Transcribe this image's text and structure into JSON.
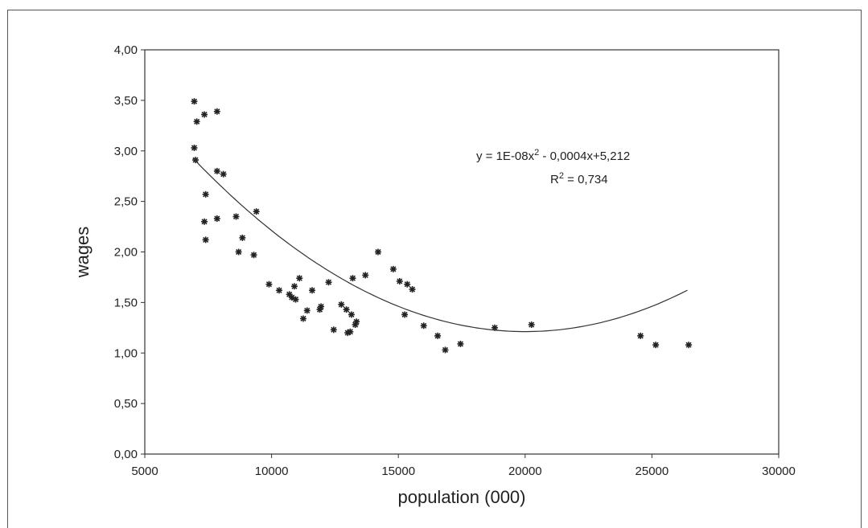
{
  "chart_data": {
    "type": "scatter",
    "xlabel": "population (000)",
    "ylabel": "wages",
    "xlim": [
      5000,
      30000
    ],
    "ylim": [
      0,
      4
    ],
    "x_ticks": [
      "5000",
      "10000",
      "15000",
      "20000",
      "25000",
      "30000"
    ],
    "y_ticks": [
      "0,00",
      "0,50",
      "1,00",
      "1,50",
      "2,00",
      "2,50",
      "3,00",
      "3,50",
      "4,00"
    ],
    "grid": false,
    "trendline": {
      "type": "polynomial",
      "degree": 2,
      "coefficients": [
        1e-08,
        -0.0004,
        5.212
      ],
      "x_range": [
        6900,
        26400
      ],
      "equation": "y = 1E-08x",
      "equation_rest": " - 0,0004x+5,212",
      "r2_label": "R",
      "r2_value": " = 0,734",
      "superscript": "2"
    },
    "marker_color": "#222222",
    "line_color": "#333333",
    "points": [
      [
        6950,
        3.49
      ],
      [
        7050,
        3.29
      ],
      [
        7350,
        3.36
      ],
      [
        7850,
        3.39
      ],
      [
        6950,
        3.03
      ],
      [
        7000,
        2.91
      ],
      [
        7400,
        2.57
      ],
      [
        7850,
        2.8
      ],
      [
        8100,
        2.77
      ],
      [
        7350,
        2.3
      ],
      [
        7400,
        2.12
      ],
      [
        7850,
        2.33
      ],
      [
        8600,
        2.35
      ],
      [
        8700,
        2.0
      ],
      [
        8850,
        2.14
      ],
      [
        9300,
        1.97
      ],
      [
        9400,
        2.4
      ],
      [
        9900,
        1.68
      ],
      [
        10300,
        1.62
      ],
      [
        10700,
        1.58
      ],
      [
        10800,
        1.55
      ],
      [
        10900,
        1.66
      ],
      [
        10950,
        1.53
      ],
      [
        11100,
        1.74
      ],
      [
        11250,
        1.34
      ],
      [
        11400,
        1.42
      ],
      [
        11600,
        1.62
      ],
      [
        11900,
        1.43
      ],
      [
        11950,
        1.46
      ],
      [
        12250,
        1.7
      ],
      [
        12450,
        1.23
      ],
      [
        12750,
        1.48
      ],
      [
        12950,
        1.43
      ],
      [
        13000,
        1.2
      ],
      [
        13100,
        1.21
      ],
      [
        13150,
        1.38
      ],
      [
        13200,
        1.74
      ],
      [
        13300,
        1.28
      ],
      [
        13350,
        1.31
      ],
      [
        13700,
        1.77
      ],
      [
        14200,
        2.0
      ],
      [
        14800,
        1.83
      ],
      [
        15050,
        1.71
      ],
      [
        15250,
        1.38
      ],
      [
        15350,
        1.68
      ],
      [
        15550,
        1.63
      ],
      [
        16000,
        1.27
      ],
      [
        16550,
        1.17
      ],
      [
        16850,
        1.03
      ],
      [
        17450,
        1.09
      ],
      [
        18800,
        1.25
      ],
      [
        20250,
        1.28
      ],
      [
        24550,
        1.17
      ],
      [
        25150,
        1.08
      ],
      [
        26450,
        1.08
      ]
    ]
  }
}
